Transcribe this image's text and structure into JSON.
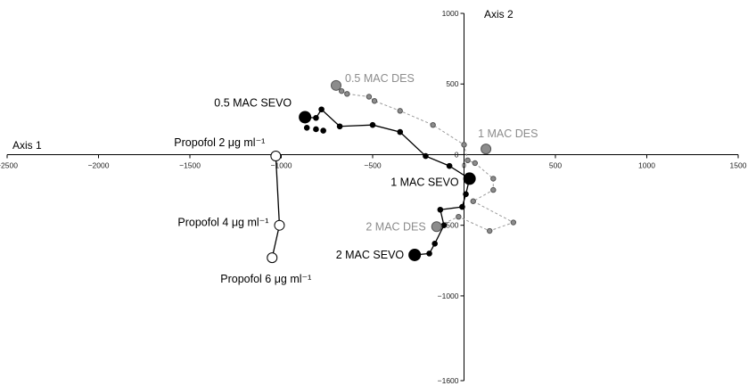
{
  "chart_data": {
    "type": "scatter",
    "title": "",
    "xlabel": "Axis 1",
    "ylabel": "Axis 2",
    "xlim": [
      -2500,
      1500
    ],
    "ylim": [
      -1600,
      1000
    ],
    "x_ticks": [
      "-2500",
      "-2000",
      "-1500",
      "-1000",
      "-500",
      "0",
      "500",
      "1000",
      "1500"
    ],
    "y_ticks": [
      "1000",
      "500",
      "0",
      "-500",
      "-1000",
      "-1600"
    ],
    "grid": false,
    "series": [
      {
        "id": "sevo",
        "color": "#000000",
        "line_style": "solid",
        "points": [
          {
            "x": -870,
            "y": 265,
            "label": "0.5 MAC SEVO",
            "label_color": "#000000",
            "large": true
          },
          {
            "x": -810,
            "y": 260
          },
          {
            "x": -780,
            "y": 320
          },
          {
            "x": -680,
            "y": 200
          },
          {
            "x": -500,
            "y": 210
          },
          {
            "x": -350,
            "y": 160
          },
          {
            "x": -210,
            "y": -10
          },
          {
            "x": -80,
            "y": -80
          },
          {
            "x": 30,
            "y": -170,
            "label": "1 MAC SEVO",
            "label_color": "#000000",
            "large": true
          },
          {
            "x": 10,
            "y": -280
          },
          {
            "x": -10,
            "y": -370
          },
          {
            "x": -130,
            "y": -390
          },
          {
            "x": -110,
            "y": -500
          },
          {
            "x": -160,
            "y": -630
          },
          {
            "x": -190,
            "y": -700
          },
          {
            "x": -270,
            "y": -710,
            "label": "2 MAC SEVO",
            "label_color": "#000000",
            "large": true
          }
        ],
        "loose_points": [
          {
            "x": -810,
            "y": 180
          },
          {
            "x": -860,
            "y": 190
          },
          {
            "x": -770,
            "y": 170
          }
        ]
      },
      {
        "id": "des",
        "color": "#8c8c8c",
        "line_style": "dashed",
        "points": [
          {
            "x": -700,
            "y": 490,
            "label": "0.5 MAC DES",
            "label_color": "#8c8c8c",
            "large": true
          },
          {
            "x": -670,
            "y": 450
          },
          {
            "x": -640,
            "y": 430
          },
          {
            "x": -520,
            "y": 410
          },
          {
            "x": -490,
            "y": 380
          },
          {
            "x": -350,
            "y": 310
          },
          {
            "x": -170,
            "y": 210
          },
          {
            "x": 0,
            "y": 70
          },
          {
            "x": 20,
            "y": -40
          },
          {
            "x": 60,
            "y": -60
          },
          {
            "x": 160,
            "y": -170
          },
          {
            "x": 160,
            "y": -250
          },
          {
            "x": 50,
            "y": -330
          },
          {
            "x": 270,
            "y": -480
          },
          {
            "x": 140,
            "y": -540
          },
          {
            "x": -30,
            "y": -440
          },
          {
            "x": -150,
            "y": -510,
            "label": "2 MAC DES",
            "label_color": "#8c8c8c",
            "large": true
          }
        ],
        "loose_points": [
          {
            "x": 120,
            "y": 40,
            "label": "1 MAC DES",
            "label_color": "#8c8c8c",
            "large": true
          }
        ]
      },
      {
        "id": "propofol",
        "color": "#000000",
        "line_style": "solid",
        "open_markers": true,
        "points": [
          {
            "x": -1030,
            "y": -10,
            "label": "Propofol 2 μg ml⁻¹",
            "label_color": "#000000",
            "large": true
          },
          {
            "x": -1010,
            "y": -500,
            "label": "Propofol 4 μg ml⁻¹",
            "label_color": "#000000",
            "large": true
          },
          {
            "x": -1050,
            "y": -730,
            "label": "Propofol 6 μg ml⁻¹",
            "label_color": "#000000",
            "large": true
          }
        ]
      }
    ]
  }
}
